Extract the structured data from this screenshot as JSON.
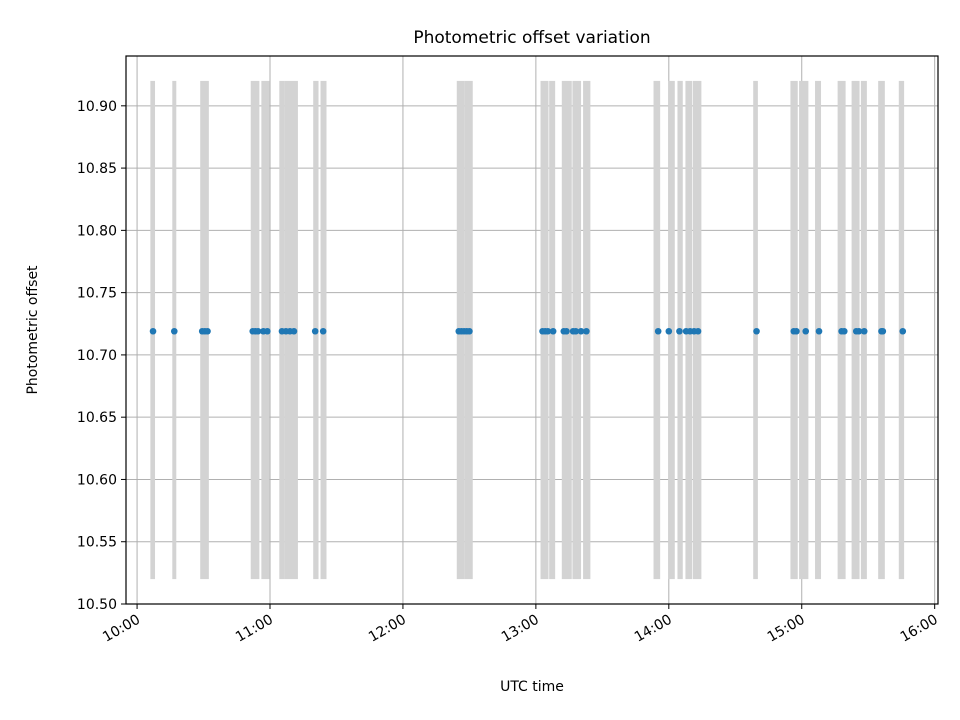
{
  "chart_data": {
    "type": "scatter",
    "title": "Photometric offset variation",
    "xlabel": "UTC time",
    "ylabel": "Photometric offset",
    "x_unit": "hours UTC",
    "xlim": [
      9.9167,
      16.025
    ],
    "ylim": [
      10.5,
      10.94
    ],
    "grid": true,
    "x_ticks": [
      {
        "value": 10,
        "label": "10:00"
      },
      {
        "value": 11,
        "label": "11:00"
      },
      {
        "value": 12,
        "label": "12:00"
      },
      {
        "value": 13,
        "label": "13:00"
      },
      {
        "value": 14,
        "label": "14:00"
      },
      {
        "value": 15,
        "label": "15:00"
      },
      {
        "value": 16,
        "label": "16:00"
      }
    ],
    "y_ticks": [
      {
        "value": 10.5,
        "label": "10.50"
      },
      {
        "value": 10.55,
        "label": "10.55"
      },
      {
        "value": 10.6,
        "label": "10.60"
      },
      {
        "value": 10.65,
        "label": "10.65"
      },
      {
        "value": 10.7,
        "label": "10.70"
      },
      {
        "value": 10.75,
        "label": "10.75"
      },
      {
        "value": 10.8,
        "label": "10.80"
      },
      {
        "value": 10.85,
        "label": "10.85"
      },
      {
        "value": 10.9,
        "label": "10.90"
      }
    ],
    "colors": {
      "points": "#1f77b4",
      "bands": "#d3d3d3",
      "grid": "#b0b0b0"
    },
    "bands": {
      "y_range": [
        10.52,
        10.92
      ],
      "x_ranges": [
        [
          10.1,
          10.135
        ],
        [
          10.265,
          10.295
        ],
        [
          10.475,
          10.54
        ],
        [
          10.855,
          10.92
        ],
        [
          10.935,
          10.995
        ],
        [
          11.07,
          11.11
        ],
        [
          11.11,
          11.21
        ],
        [
          11.325,
          11.365
        ],
        [
          11.38,
          11.425
        ],
        [
          12.405,
          12.465
        ],
        [
          12.465,
          12.525
        ],
        [
          13.035,
          13.095
        ],
        [
          13.1,
          13.145
        ],
        [
          13.195,
          13.27
        ],
        [
          13.275,
          13.34
        ],
        [
          13.355,
          13.41
        ],
        [
          13.885,
          13.935
        ],
        [
          13.995,
          14.045
        ],
        [
          14.065,
          14.105
        ],
        [
          14.125,
          14.175
        ],
        [
          14.18,
          14.245
        ],
        [
          14.635,
          14.67
        ],
        [
          14.915,
          14.97
        ],
        [
          14.98,
          15.05
        ],
        [
          15.1,
          15.145
        ],
        [
          15.27,
          15.33
        ],
        [
          15.375,
          15.435
        ],
        [
          15.445,
          15.49
        ],
        [
          15.575,
          15.625
        ],
        [
          15.73,
          15.77
        ]
      ]
    },
    "series": [
      {
        "x": [
          10.12,
          10.28,
          10.49,
          10.51,
          10.53,
          10.87,
          10.89,
          10.91,
          10.95,
          10.98,
          11.09,
          11.12,
          11.15,
          11.18,
          11.34,
          11.4,
          12.42,
          12.44,
          12.46,
          12.48,
          12.5,
          13.05,
          13.07,
          13.09,
          13.13,
          13.21,
          13.23,
          13.28,
          13.3,
          13.34,
          13.38,
          13.92,
          14.0,
          14.08,
          14.13,
          14.16,
          14.19,
          14.22,
          14.66,
          14.94,
          14.96,
          15.03,
          15.13,
          15.3,
          15.32,
          15.41,
          15.43,
          15.47,
          15.6,
          15.61,
          15.76
        ],
        "y": [
          10.719,
          10.719,
          10.719,
          10.719,
          10.719,
          10.719,
          10.719,
          10.719,
          10.719,
          10.719,
          10.719,
          10.719,
          10.719,
          10.719,
          10.719,
          10.719,
          10.719,
          10.719,
          10.719,
          10.719,
          10.719,
          10.719,
          10.719,
          10.719,
          10.719,
          10.719,
          10.719,
          10.719,
          10.719,
          10.719,
          10.719,
          10.719,
          10.719,
          10.719,
          10.719,
          10.719,
          10.719,
          10.719,
          10.719,
          10.719,
          10.719,
          10.719,
          10.719,
          10.719,
          10.719,
          10.719,
          10.719,
          10.719,
          10.719,
          10.719,
          10.719
        ]
      }
    ]
  }
}
